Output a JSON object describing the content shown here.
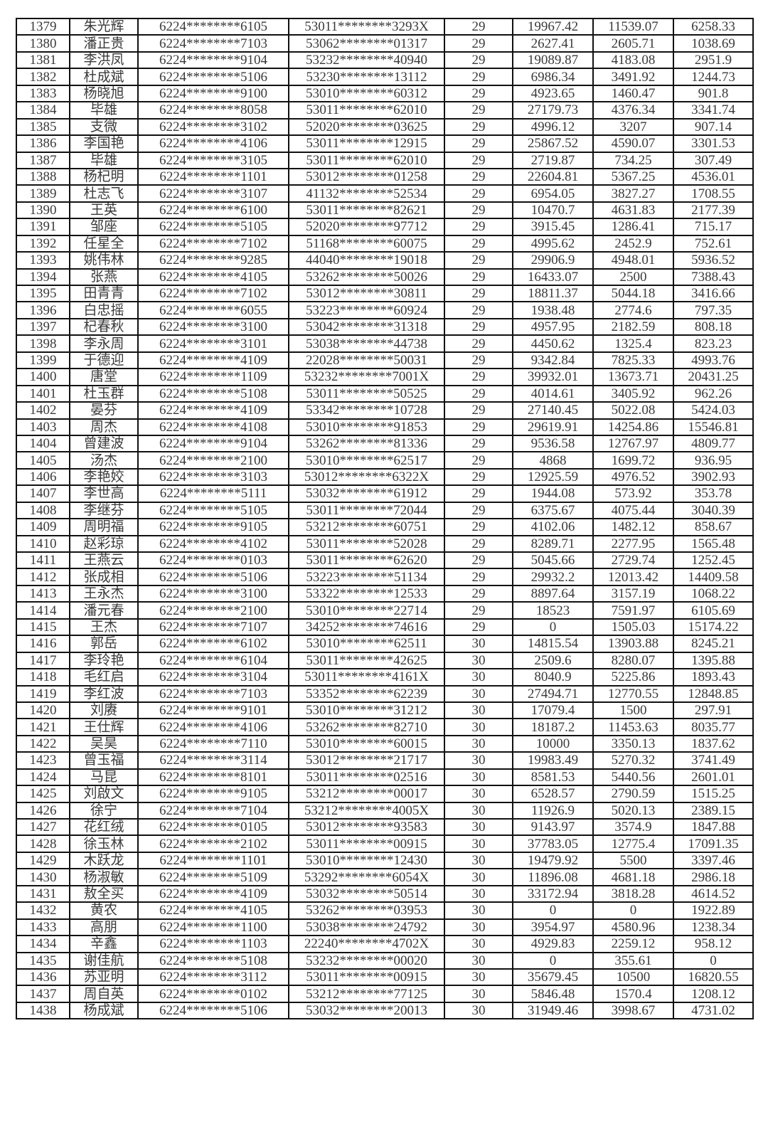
{
  "table": {
    "rows": [
      [
        "1379",
        "朱光辉",
        "6224********6105",
        "53011********3293X",
        "29",
        "19967.42",
        "11539.07",
        "6258.33"
      ],
      [
        "1380",
        "潘正贵",
        "6224********7103",
        "53062********01317",
        "29",
        "2627.41",
        "2605.71",
        "1038.69"
      ],
      [
        "1381",
        "李洪凤",
        "6224********9104",
        "53232********40940",
        "29",
        "19089.87",
        "4183.08",
        "2951.9"
      ],
      [
        "1382",
        "杜成斌",
        "6224********5106",
        "53230********13112",
        "29",
        "6986.34",
        "3491.92",
        "1244.73"
      ],
      [
        "1383",
        "杨晓旭",
        "6224********9100",
        "53010********60312",
        "29",
        "4923.65",
        "1460.47",
        "901.8"
      ],
      [
        "1384",
        "毕雄",
        "6224********8058",
        "53011********62010",
        "29",
        "27179.73",
        "4376.34",
        "3341.74"
      ],
      [
        "1385",
        "支微",
        "6224********3102",
        "52020********03625",
        "29",
        "4996.12",
        "3207",
        "907.14"
      ],
      [
        "1386",
        "李国艳",
        "6224********4106",
        "53011********12915",
        "29",
        "25867.52",
        "4590.07",
        "3301.53"
      ],
      [
        "1387",
        "毕雄",
        "6224********3105",
        "53011********62010",
        "29",
        "2719.87",
        "734.25",
        "307.49"
      ],
      [
        "1388",
        "杨杞明",
        "6224********1101",
        "53012********01258",
        "29",
        "22604.81",
        "5367.25",
        "4536.01"
      ],
      [
        "1389",
        "杜志飞",
        "6224********3107",
        "41132********52534",
        "29",
        "6954.05",
        "3827.27",
        "1708.55"
      ],
      [
        "1390",
        "王英",
        "6224********6100",
        "53011********82621",
        "29",
        "10470.7",
        "4631.83",
        "2177.39"
      ],
      [
        "1391",
        "邹座",
        "6224********5105",
        "52020********97712",
        "29",
        "3915.45",
        "1286.41",
        "715.17"
      ],
      [
        "1392",
        "任星全",
        "6224********7102",
        "51168********60075",
        "29",
        "4995.62",
        "2452.9",
        "752.61"
      ],
      [
        "1393",
        "姚伟林",
        "6224********9285",
        "44040********19018",
        "29",
        "29906.9",
        "4948.01",
        "5936.52"
      ],
      [
        "1394",
        "张燕",
        "6224********4105",
        "53262********50026",
        "29",
        "16433.07",
        "2500",
        "7388.43"
      ],
      [
        "1395",
        "田青青",
        "6224********7102",
        "53012********30811",
        "29",
        "18811.37",
        "5044.18",
        "3416.66"
      ],
      [
        "1396",
        "白忠摇",
        "6224********6055",
        "53223********60924",
        "29",
        "1938.48",
        "2774.6",
        "797.35"
      ],
      [
        "1397",
        "杞春秋",
        "6224********3100",
        "53042********31318",
        "29",
        "4957.95",
        "2182.59",
        "808.18"
      ],
      [
        "1398",
        "李永周",
        "6224********3101",
        "53038********44738",
        "29",
        "4450.62",
        "1325.4",
        "823.23"
      ],
      [
        "1399",
        "于德迎",
        "6224********4109",
        "22028********50031",
        "29",
        "9342.84",
        "7825.33",
        "4993.76"
      ],
      [
        "1400",
        "唐堂",
        "6224********1109",
        "53232********7001X",
        "29",
        "39932.01",
        "13673.71",
        "20431.25"
      ],
      [
        "1401",
        "杜玉群",
        "6224********5108",
        "53011********50525",
        "29",
        "4014.61",
        "3405.92",
        "962.26"
      ],
      [
        "1402",
        "晏芬",
        "6224********4109",
        "53342********10728",
        "29",
        "27140.45",
        "5022.08",
        "5424.03"
      ],
      [
        "1403",
        "周杰",
        "6224********4108",
        "53010********91853",
        "29",
        "29619.91",
        "14254.86",
        "15546.81"
      ],
      [
        "1404",
        "曾建波",
        "6224********9104",
        "53262********81336",
        "29",
        "9536.58",
        "12767.97",
        "4809.77"
      ],
      [
        "1405",
        "汤杰",
        "6224********2100",
        "53010********62517",
        "29",
        "4868",
        "1699.72",
        "936.95"
      ],
      [
        "1406",
        "李艳姣",
        "6224********3103",
        "53012********6322X",
        "29",
        "12925.59",
        "4976.52",
        "3902.93"
      ],
      [
        "1407",
        "李世高",
        "6224********5111",
        "53032********61912",
        "29",
        "1944.08",
        "573.92",
        "353.78"
      ],
      [
        "1408",
        "李继芬",
        "6224********5105",
        "53011********72044",
        "29",
        "6375.67",
        "4075.44",
        "3040.39"
      ],
      [
        "1409",
        "周明福",
        "6224********9105",
        "53212********60751",
        "29",
        "4102.06",
        "1482.12",
        "858.67"
      ],
      [
        "1410",
        "赵彩琼",
        "6224********4102",
        "53011********52028",
        "29",
        "8289.71",
        "2277.95",
        "1565.48"
      ],
      [
        "1411",
        "王燕云",
        "6224********0103",
        "53011********62620",
        "29",
        "5045.66",
        "2729.74",
        "1252.45"
      ],
      [
        "1412",
        "张成相",
        "6224********5106",
        "53223********51134",
        "29",
        "29932.2",
        "12013.42",
        "14409.58"
      ],
      [
        "1413",
        "王永杰",
        "6224********3100",
        "53322********12533",
        "29",
        "8897.64",
        "3157.19",
        "1068.22"
      ],
      [
        "1414",
        "潘元春",
        "6224********2100",
        "53010********22714",
        "29",
        "18523",
        "7591.97",
        "6105.69"
      ],
      [
        "1415",
        "王杰",
        "6224********7107",
        "34252********74616",
        "29",
        "0",
        "1505.03",
        "15174.22"
      ],
      [
        "1416",
        "郭岳",
        "6224********6102",
        "53010********62511",
        "30",
        "14815.54",
        "13903.88",
        "8245.21"
      ],
      [
        "1417",
        "李玲艳",
        "6224********6104",
        "53011********42625",
        "30",
        "2509.6",
        "8280.07",
        "1395.88"
      ],
      [
        "1418",
        "毛红启",
        "6224********3104",
        "53011********4161X",
        "30",
        "8040.9",
        "5225.86",
        "1893.43"
      ],
      [
        "1419",
        "李红波",
        "6224********7103",
        "53352********62239",
        "30",
        "27494.71",
        "12770.55",
        "12848.85"
      ],
      [
        "1420",
        "刘赓",
        "6224********9101",
        "53010********31212",
        "30",
        "17079.4",
        "1500",
        "297.91"
      ],
      [
        "1421",
        "王仕辉",
        "6224********4106",
        "53262********82710",
        "30",
        "18187.2",
        "11453.63",
        "8035.77"
      ],
      [
        "1422",
        "吴昊",
        "6224********7110",
        "53010********60015",
        "30",
        "10000",
        "3350.13",
        "1837.62"
      ],
      [
        "1423",
        "曾玉福",
        "6224********3114",
        "53012********21717",
        "30",
        "19983.49",
        "5270.32",
        "3741.49"
      ],
      [
        "1424",
        "马昆",
        "6224********8101",
        "53011********02516",
        "30",
        "8581.53",
        "5440.56",
        "2601.01"
      ],
      [
        "1425",
        "刘啟文",
        "6224********9105",
        "53212********00017",
        "30",
        "6528.57",
        "2790.59",
        "1515.25"
      ],
      [
        "1426",
        "徐宁",
        "6224********7104",
        "53212********4005X",
        "30",
        "11926.9",
        "5020.13",
        "2389.15"
      ],
      [
        "1427",
        "花红绒",
        "6224********0105",
        "53012********93583",
        "30",
        "9143.97",
        "3574.9",
        "1847.88"
      ],
      [
        "1428",
        "徐玉林",
        "6224********2102",
        "53011********00915",
        "30",
        "37783.05",
        "12775.4",
        "17091.35"
      ],
      [
        "1429",
        "木跃龙",
        "6224********1101",
        "53010********12430",
        "30",
        "19479.92",
        "5500",
        "3397.46"
      ],
      [
        "1430",
        "杨淑敏",
        "6224********5109",
        "53292********6054X",
        "30",
        "11896.08",
        "4681.18",
        "2986.18"
      ],
      [
        "1431",
        "敖全买",
        "6224********4109",
        "53032********50514",
        "30",
        "33172.94",
        "3818.28",
        "4614.52"
      ],
      [
        "1432",
        "黄农",
        "6224********4105",
        "53262********03953",
        "30",
        "0",
        "0",
        "1922.89"
      ],
      [
        "1433",
        "高朋",
        "6224********1100",
        "53038********24792",
        "30",
        "3954.97",
        "4580.96",
        "1238.34"
      ],
      [
        "1434",
        "辛鑫",
        "6224********1103",
        "22240********4702X",
        "30",
        "4929.83",
        "2259.12",
        "958.12"
      ],
      [
        "1435",
        "谢佳航",
        "6224********5108",
        "53232********00020",
        "30",
        "0",
        "355.61",
        "0"
      ],
      [
        "1436",
        "苏亚明",
        "6224********3112",
        "53011********00915",
        "30",
        "35679.45",
        "10500",
        "16820.55"
      ],
      [
        "1437",
        "周自英",
        "6224********0102",
        "53212********77125",
        "30",
        "5846.48",
        "1570.4",
        "1208.12"
      ],
      [
        "1438",
        "杨成斌",
        "6224********5106",
        "53032********20013",
        "30",
        "31949.46",
        "3998.67",
        "4731.02"
      ]
    ]
  }
}
